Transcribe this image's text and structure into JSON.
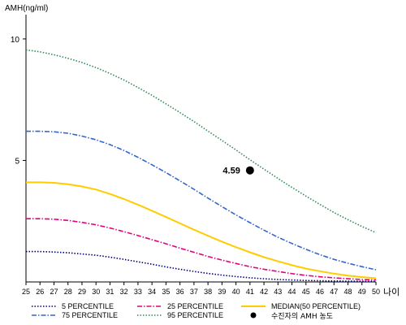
{
  "chart_data": {
    "type": "line",
    "ylabel": "AMH(ng/ml)",
    "xlabel": "나이",
    "xlim": [
      25,
      50
    ],
    "ylim": [
      0,
      11
    ],
    "xticks": [
      25,
      26,
      27,
      28,
      29,
      30,
      31,
      32,
      33,
      34,
      35,
      36,
      37,
      38,
      39,
      40,
      41,
      42,
      43,
      44,
      45,
      46,
      47,
      48,
      49,
      50
    ],
    "yticks": [
      5,
      10
    ],
    "grid": false,
    "legend_position": "bottom",
    "x": [
      25,
      26,
      27,
      28,
      29,
      30,
      31,
      32,
      33,
      34,
      35,
      36,
      37,
      38,
      39,
      40,
      41,
      42,
      43,
      44,
      45,
      46,
      47,
      48,
      49,
      50
    ],
    "series": [
      {
        "name": "5 PERCENTILE",
        "color": "#000080",
        "dash": "1.5,2",
        "values": [
          1.25,
          1.25,
          1.23,
          1.2,
          1.15,
          1.1,
          1.02,
          0.93,
          0.83,
          0.73,
          0.62,
          0.52,
          0.43,
          0.35,
          0.28,
          0.22,
          0.17,
          0.13,
          0.1,
          0.08,
          0.06,
          0.05,
          0.04,
          0.03,
          0.03,
          0.02
        ]
      },
      {
        "name": "25 PERCENTILE",
        "color": "#e6007e",
        "dash": "6,2,1.5,2",
        "values": [
          2.6,
          2.6,
          2.58,
          2.53,
          2.45,
          2.35,
          2.22,
          2.07,
          1.91,
          1.74,
          1.57,
          1.39,
          1.22,
          1.05,
          0.9,
          0.76,
          0.63,
          0.52,
          0.43,
          0.34,
          0.27,
          0.21,
          0.17,
          0.13,
          0.1,
          0.08
        ]
      },
      {
        "name": "MEDIAN(50 PERCENTILE)",
        "color": "#ffcc00",
        "dash": "",
        "values": [
          4.1,
          4.1,
          4.08,
          4.02,
          3.93,
          3.8,
          3.62,
          3.41,
          3.18,
          2.93,
          2.67,
          2.41,
          2.15,
          1.9,
          1.66,
          1.43,
          1.22,
          1.02,
          0.85,
          0.69,
          0.55,
          0.44,
          0.34,
          0.26,
          0.2,
          0.15
        ]
      },
      {
        "name": "75 PERCENTILE",
        "color": "#3366cc",
        "dash": "6,2,1.5,2",
        "values": [
          6.2,
          6.2,
          6.18,
          6.12,
          6.0,
          5.85,
          5.65,
          5.41,
          5.13,
          4.82,
          4.5,
          4.16,
          3.81,
          3.45,
          3.1,
          2.76,
          2.44,
          2.13,
          1.84,
          1.58,
          1.34,
          1.12,
          0.93,
          0.77,
          0.63,
          0.5
        ]
      },
      {
        "name": "95 PERCENTILE",
        "color": "#2e8b57",
        "dash": "1.5,2",
        "values": [
          9.55,
          9.47,
          9.35,
          9.2,
          9.03,
          8.82,
          8.58,
          8.31,
          8.0,
          7.68,
          7.33,
          6.97,
          6.6,
          6.21,
          5.82,
          5.43,
          5.03,
          4.64,
          4.26,
          3.89,
          3.53,
          3.19,
          2.86,
          2.56,
          2.28,
          2.03
        ]
      }
    ],
    "annotation": {
      "name": "수진자의 AMH 농도",
      "x": 41,
      "y": 4.59,
      "label": "4.59",
      "color": "#000000"
    }
  }
}
